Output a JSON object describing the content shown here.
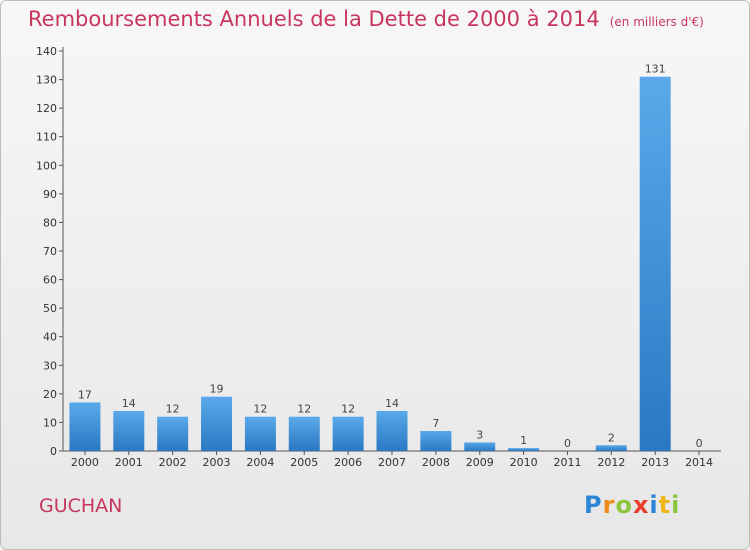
{
  "title": {
    "main": "Remboursements Annuels de la Dette de 2000 à 2014",
    "unit": "(en milliers d'€)"
  },
  "place": "GUCHAN",
  "logo": {
    "parts": [
      "P",
      "r",
      "o",
      "x",
      "i",
      "t",
      "i"
    ]
  },
  "colors": {
    "title": "#c8365e",
    "bar": "#3a8fd9",
    "axis": "#555555"
  },
  "chart_data": {
    "type": "bar",
    "title": "Remboursements Annuels de la Dette de 2000 à 2014",
    "categories": [
      "2000",
      "2001",
      "2002",
      "2003",
      "2004",
      "2005",
      "2006",
      "2007",
      "2008",
      "2009",
      "2010",
      "2011",
      "2012",
      "2013",
      "2014"
    ],
    "values": [
      17,
      14,
      12,
      19,
      12,
      12,
      12,
      14,
      7,
      3,
      1,
      0,
      2,
      131,
      0
    ],
    "ylim": [
      0,
      140
    ],
    "yticks": [
      0,
      10,
      20,
      30,
      40,
      50,
      60,
      70,
      80,
      90,
      100,
      110,
      120,
      130,
      140
    ],
    "grid": false,
    "legend": "none"
  }
}
